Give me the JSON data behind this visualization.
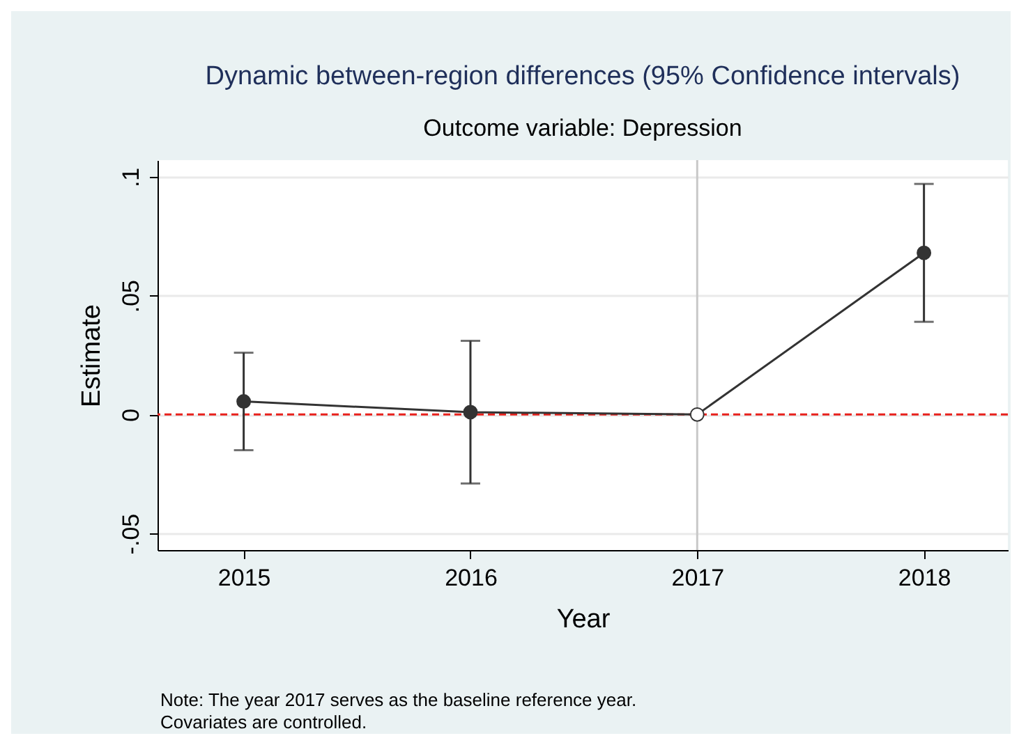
{
  "chart_data": {
    "type": "line",
    "title": "Dynamic between-region differences (95% Confidence intervals)",
    "subtitle": "Outcome variable: Depression",
    "xlabel": "Year",
    "ylabel": "Estimate",
    "x": [
      2015,
      2016,
      2017,
      2018
    ],
    "series": [
      {
        "color": "#333333",
        "marker": "none",
        "values": [
          0.0055,
          0.001,
          0,
          0.068
        ]
      },
      {
        "type": "scatter",
        "color": "#333333",
        "marker": "circle",
        "x": [
          2015,
          2016,
          2018
        ],
        "values": [
          0.0055,
          0.001,
          0.068
        ],
        "errors": [
          [
            -0.015,
            0.026
          ],
          [
            -0.029,
            0.031
          ],
          [
            0.039,
            0.097
          ]
        ]
      },
      {
        "type": "scatter",
        "color": "#ffffff",
        "marker": "circle",
        "x": [
          2017
        ],
        "values": [
          0
        ]
      }
    ],
    "xlim": [
      2014.62,
      2018.37
    ],
    "ylim": [
      -0.057,
      0.107
    ],
    "xticks": [
      2015,
      2016,
      2017,
      2018
    ],
    "yticks": [
      {
        "value": -0.05,
        "label": "-.05"
      },
      {
        "value": 0,
        "label": "0"
      },
      {
        "value": 0.05,
        "label": ".05"
      },
      {
        "value": 0.1,
        "label": ".1"
      }
    ],
    "grid": "y",
    "ref_lines": [
      {
        "axis": "y",
        "value": 0,
        "color": "#e8211c",
        "line_style": "dashed"
      },
      {
        "axis": "x",
        "value": 2017,
        "color": "#c8c8c8",
        "line_style": "solid"
      }
    ],
    "annotations": [
      "Note: The year 2017 serves as the baseline reference year.",
      "Covariates are controlled."
    ]
  }
}
